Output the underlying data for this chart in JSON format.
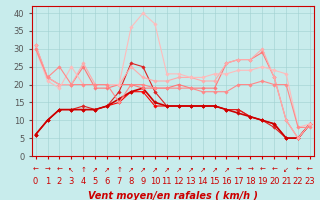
{
  "xlabel": "Vent moyen/en rafales ( km/h )",
  "background_color": "#c8ecec",
  "grid_color": "#a0d0d0",
  "x_values": [
    0,
    1,
    2,
    3,
    4,
    5,
    6,
    7,
    8,
    9,
    10,
    11,
    12,
    13,
    14,
    15,
    16,
    17,
    18,
    19,
    20,
    21,
    22,
    23
  ],
  "series": [
    {
      "color": "#ff0000",
      "linewidth": 0.8,
      "marker": "D",
      "markersize": 1.8,
      "data": [
        6,
        10,
        13,
        13,
        13,
        13,
        14,
        15,
        18,
        18,
        14,
        14,
        14,
        14,
        14,
        14,
        13,
        13,
        11,
        10,
        9,
        5,
        5,
        9
      ]
    },
    {
      "color": "#dd2222",
      "linewidth": 0.8,
      "marker": "D",
      "markersize": 1.8,
      "data": [
        6,
        10,
        13,
        13,
        14,
        13,
        14,
        18,
        26,
        25,
        18,
        14,
        14,
        14,
        14,
        14,
        13,
        13,
        11,
        10,
        8,
        5,
        5,
        9
      ]
    },
    {
      "color": "#cc0000",
      "linewidth": 1.2,
      "marker": "D",
      "markersize": 1.8,
      "data": [
        6,
        10,
        13,
        13,
        13,
        13,
        14,
        16,
        18,
        19,
        15,
        14,
        14,
        14,
        14,
        14,
        13,
        12,
        11,
        10,
        9,
        5,
        5,
        9
      ]
    },
    {
      "color": "#ff7777",
      "linewidth": 0.8,
      "marker": "D",
      "markersize": 1.8,
      "data": [
        31,
        22,
        20,
        20,
        25,
        19,
        19,
        20,
        20,
        19,
        19,
        19,
        20,
        19,
        19,
        19,
        26,
        27,
        27,
        29,
        22,
        10,
        5,
        9
      ]
    },
    {
      "color": "#ffaaaa",
      "linewidth": 0.8,
      "marker": "D",
      "markersize": 1.8,
      "data": [
        31,
        22,
        20,
        20,
        26,
        20,
        20,
        20,
        25,
        22,
        21,
        21,
        22,
        22,
        21,
        21,
        26,
        27,
        27,
        30,
        22,
        10,
        5,
        9
      ]
    },
    {
      "color": "#ffbbbb",
      "linewidth": 0.8,
      "marker": "D",
      "markersize": 1.8,
      "data": [
        30,
        21,
        19,
        25,
        20,
        20,
        20,
        20,
        36,
        40,
        37,
        23,
        23,
        22,
        22,
        23,
        23,
        24,
        24,
        25,
        24,
        23,
        8,
        9
      ]
    },
    {
      "color": "#ff8888",
      "linewidth": 0.8,
      "marker": "D",
      "markersize": 1.8,
      "data": [
        30,
        22,
        25,
        20,
        20,
        20,
        20,
        15,
        20,
        20,
        19,
        19,
        19,
        19,
        18,
        18,
        18,
        20,
        20,
        21,
        20,
        20,
        8,
        8
      ]
    }
  ],
  "ylim": [
    0,
    42
  ],
  "yticks": [
    0,
    5,
    10,
    15,
    20,
    25,
    30,
    35,
    40
  ],
  "xlim": [
    -0.3,
    23.3
  ],
  "xticks": [
    0,
    1,
    2,
    3,
    4,
    5,
    6,
    7,
    8,
    9,
    10,
    11,
    12,
    13,
    14,
    15,
    16,
    17,
    18,
    19,
    20,
    21,
    22,
    23
  ],
  "arrows": [
    "←",
    "→",
    "←",
    "↖",
    "↑",
    "↗",
    "↗",
    "↑",
    "↗",
    "↗",
    "↗",
    "↗",
    "↗",
    "↗",
    "↗",
    "↗",
    "↗",
    "→",
    "→",
    "←",
    "←",
    "↙",
    "←",
    "←"
  ],
  "xlabel_color": "#cc0000",
  "xlabel_fontsize": 7,
  "tick_fontsize": 6,
  "arrow_fontsize": 5
}
